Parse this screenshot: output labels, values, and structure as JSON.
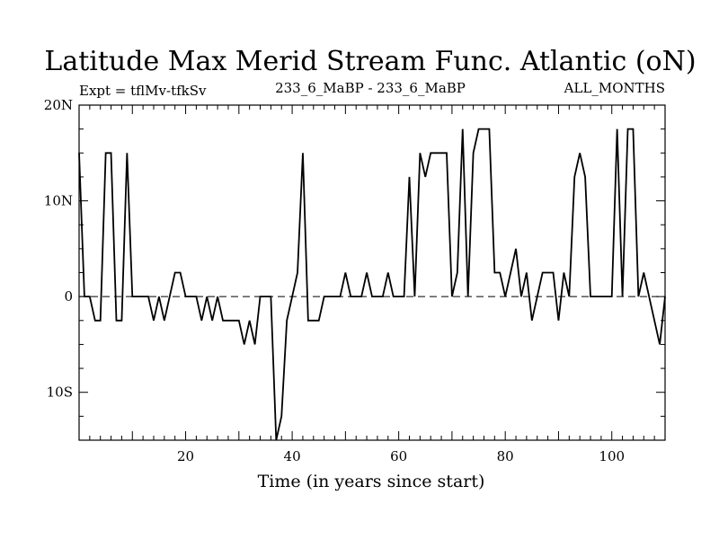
{
  "chart_data": {
    "type": "line",
    "title": "Latitude Max Merid Stream Func. Atlantic (oN)",
    "subtitle_left": "Expt = tflMv-tfkSv",
    "subtitle_center": "233_6_MaBP - 233_6_MaBP",
    "subtitle_right": "ALL_MONTHS",
    "xlabel": "Time (in years since start)",
    "ylabel": "",
    "xlim": [
      0,
      110
    ],
    "ylim": [
      -15,
      20
    ],
    "x_ticks": [
      20,
      40,
      60,
      80,
      100
    ],
    "y_ticks": [
      {
        "value": 20,
        "label": "20N"
      },
      {
        "value": 10,
        "label": "10N"
      },
      {
        "value": 0,
        "label": "0"
      },
      {
        "value": -10,
        "label": "10S"
      }
    ],
    "zero_line": "dashed",
    "grid": false,
    "series": [
      {
        "color": "#000000",
        "x": [
          0,
          1,
          2,
          3,
          4,
          5,
          6,
          7,
          8,
          9,
          10,
          11,
          12,
          13,
          14,
          15,
          16,
          17,
          18,
          19,
          20,
          21,
          22,
          23,
          24,
          25,
          26,
          27,
          28,
          29,
          30,
          31,
          32,
          33,
          34,
          35,
          36,
          37,
          38,
          39,
          40,
          41,
          42,
          43,
          44,
          45,
          46,
          47,
          48,
          49,
          50,
          51,
          52,
          53,
          54,
          55,
          56,
          57,
          58,
          59,
          60,
          61,
          62,
          63,
          64,
          65,
          66,
          67,
          68,
          69,
          70,
          71,
          72,
          73,
          74,
          75,
          76,
          77,
          78,
          79,
          80,
          81,
          82,
          83,
          84,
          85,
          86,
          87,
          88,
          89,
          90,
          91,
          92,
          93,
          94,
          95,
          96,
          97,
          98,
          99,
          100,
          101,
          102,
          103,
          104,
          105,
          106,
          107,
          108,
          109,
          110
        ],
        "values": [
          15,
          0,
          0,
          -2.5,
          -2.5,
          15,
          15,
          -2.5,
          -2.5,
          15,
          0,
          0,
          0,
          0,
          -2.5,
          0,
          -2.5,
          0,
          2.5,
          2.5,
          0,
          0,
          0,
          -2.5,
          0,
          -2.5,
          0,
          -2.5,
          -2.5,
          -2.5,
          -2.5,
          -5,
          -2.5,
          -5,
          0,
          0,
          0,
          -15,
          -12.5,
          -2.5,
          0,
          2.5,
          15,
          -2.5,
          -2.5,
          -2.5,
          0,
          0,
          0,
          0,
          2.5,
          0,
          0,
          0,
          2.5,
          0,
          0,
          0,
          2.5,
          0,
          0,
          0,
          12.5,
          0,
          15,
          12.5,
          15,
          15,
          15,
          15,
          0,
          2.5,
          17.5,
          0,
          15,
          17.5,
          17.5,
          17.5,
          2.5,
          2.5,
          0,
          2.5,
          5,
          0,
          2.5,
          -2.5,
          0,
          2.5,
          2.5,
          2.5,
          -2.5,
          2.5,
          0,
          12.5,
          15,
          12.5,
          0,
          0,
          0,
          0,
          0,
          17.5,
          0,
          17.5,
          17.5,
          0,
          2.5,
          0,
          -2.5,
          -5,
          0
        ]
      }
    ]
  }
}
